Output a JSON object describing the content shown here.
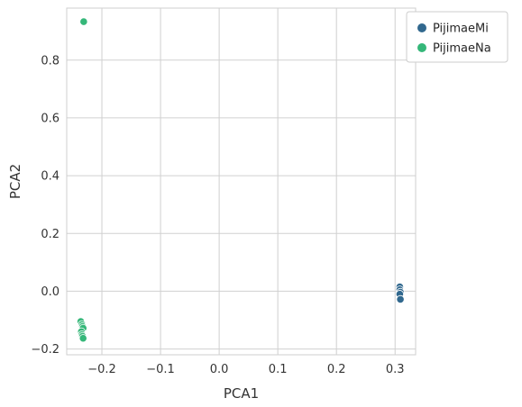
{
  "chart_data": {
    "type": "scatter",
    "title": "",
    "xlabel": "PCA1",
    "ylabel": "PCA2",
    "xlim": [
      -0.26,
      0.335
    ],
    "ylim": [
      -0.22,
      0.98
    ],
    "xticks": [
      -0.2,
      -0.1,
      0.0,
      0.1,
      0.2,
      0.3
    ],
    "xtick_labels": [
      "−0.2",
      "−0.1",
      "0.0",
      "0.1",
      "0.2",
      "0.3"
    ],
    "yticks": [
      -0.2,
      0.0,
      0.2,
      0.4,
      0.6,
      0.8
    ],
    "ytick_labels": [
      "−0.2",
      "0.0",
      "0.2",
      "0.4",
      "0.6",
      "0.8"
    ],
    "grid": true,
    "legend_position": "top-right, outside plot",
    "series": [
      {
        "name": "PijimaeMi",
        "color": "#31688e",
        "points": [
          {
            "x": 0.308,
            "y": 0.015
          },
          {
            "x": 0.308,
            "y": 0.005
          },
          {
            "x": 0.309,
            "y": -0.003
          },
          {
            "x": 0.308,
            "y": -0.01
          },
          {
            "x": 0.309,
            "y": -0.028
          }
        ]
      },
      {
        "name": "PijimaeNa",
        "color": "#35b779",
        "points": [
          {
            "x": -0.231,
            "y": 0.933
          },
          {
            "x": -0.236,
            "y": -0.105
          },
          {
            "x": -0.234,
            "y": -0.115
          },
          {
            "x": -0.233,
            "y": -0.122
          },
          {
            "x": -0.232,
            "y": -0.128
          },
          {
            "x": -0.235,
            "y": -0.14
          },
          {
            "x": -0.234,
            "y": -0.15
          },
          {
            "x": -0.233,
            "y": -0.156
          },
          {
            "x": -0.232,
            "y": -0.163
          }
        ]
      }
    ]
  }
}
